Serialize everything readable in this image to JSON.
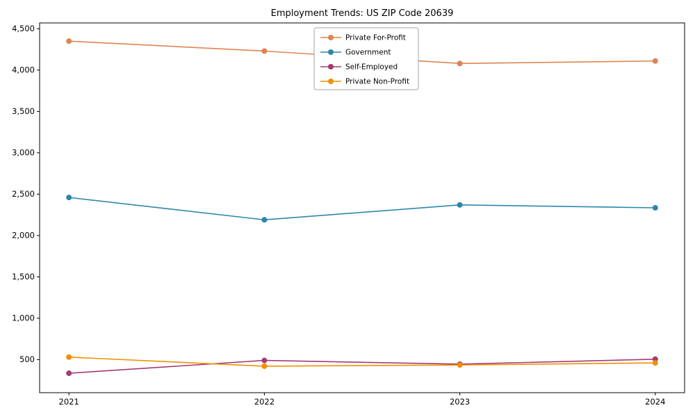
{
  "chart_data": {
    "type": "line",
    "title": "Employment Trends: US ZIP Code 20639",
    "x": [
      2021,
      2022,
      2023,
      2024
    ],
    "x_tick_labels": [
      "2021",
      "2022",
      "2023",
      "2024"
    ],
    "series": [
      {
        "name": "Private For-Profit",
        "color": "#dd8452",
        "values": [
          4350,
          4230,
          4080,
          4110
        ]
      },
      {
        "name": "Government",
        "color": "#2e86ab",
        "values": [
          2460,
          2190,
          2370,
          2335
        ]
      },
      {
        "name": "Self-Employed",
        "color": "#a23b72",
        "values": [
          335,
          490,
          445,
          505
        ]
      },
      {
        "name": "Private Non-Profit",
        "color": "#f18f01",
        "values": [
          530,
          420,
          435,
          460
        ]
      }
    ],
    "yticks": [
      500,
      1000,
      1500,
      2000,
      2500,
      3000,
      3500,
      4000,
      4500
    ],
    "ytick_labels": [
      "500",
      "1,000",
      "1,500",
      "2,000",
      "2,500",
      "3,000",
      "3,500",
      "4,000",
      "4,500"
    ],
    "ylim": [
      100,
      4570
    ],
    "xlim": [
      2020.85,
      2024.15
    ],
    "legend_position": "top-center",
    "grid": false,
    "marker": "circle",
    "frame_color": "#000000",
    "background_color": "#ffffff"
  }
}
